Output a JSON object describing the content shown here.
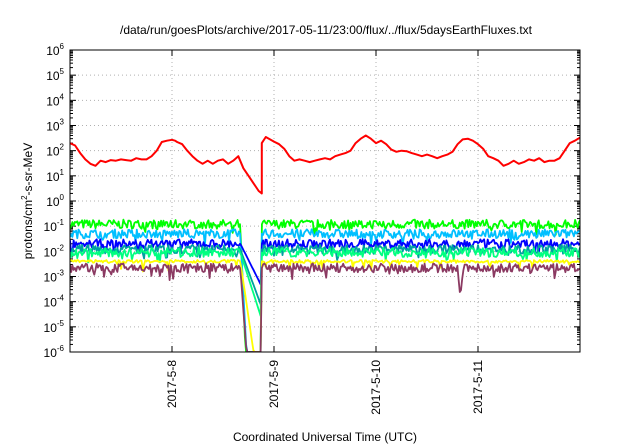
{
  "chart_data": {
    "type": "line",
    "title": "/data/run/goesPlots/archive/2017-05-11/23:00/flux/../flux/5daysEarthFluxes.txt",
    "xlabel": "Coordinated Universal Time (UTC)",
    "ylabel_parts": [
      "protons/cm",
      "2",
      "-s-sr-MeV"
    ],
    "y_scale": "log",
    "ylim": [
      1e-06,
      1000000.0
    ],
    "xlim": [
      0,
      5
    ],
    "grid": true,
    "legend": "none",
    "y_ticks": [
      {
        "value": 1e-06,
        "base": "10",
        "exp": "-6"
      },
      {
        "value": 1e-05,
        "base": "10",
        "exp": "-5"
      },
      {
        "value": 0.0001,
        "base": "10",
        "exp": "-4"
      },
      {
        "value": 0.001,
        "base": "10",
        "exp": "-3"
      },
      {
        "value": 0.01,
        "base": "10",
        "exp": "-2"
      },
      {
        "value": 0.1,
        "base": "10",
        "exp": "-1"
      },
      {
        "value": 1,
        "base": "10",
        "exp": "0"
      },
      {
        "value": 10,
        "base": "10",
        "exp": "1"
      },
      {
        "value": 100,
        "base": "10",
        "exp": "2"
      },
      {
        "value": 1000,
        "base": "10",
        "exp": "3"
      },
      {
        "value": 10000,
        "base": "10",
        "exp": "4"
      },
      {
        "value": 100000,
        "base": "10",
        "exp": "5"
      },
      {
        "value": 1000000,
        "base": "10",
        "exp": "6"
      }
    ],
    "x_ticks": [
      {
        "value": 1,
        "label": "2017-5-8"
      },
      {
        "value": 2,
        "label": "2017-5-9"
      },
      {
        "value": 3,
        "label": "2017-5-10"
      },
      {
        "value": 4,
        "label": "2017-5-11"
      }
    ],
    "series": [
      {
        "color": "#ff0000",
        "values": [
          [
            0.0,
            200
          ],
          [
            0.05,
            160
          ],
          [
            0.1,
            80
          ],
          [
            0.15,
            45
          ],
          [
            0.2,
            30
          ],
          [
            0.25,
            25
          ],
          [
            0.3,
            40
          ],
          [
            0.35,
            35
          ],
          [
            0.4,
            42
          ],
          [
            0.45,
            40
          ],
          [
            0.5,
            45
          ],
          [
            0.55,
            42
          ],
          [
            0.6,
            40
          ],
          [
            0.65,
            50
          ],
          [
            0.7,
            45
          ],
          [
            0.75,
            45
          ],
          [
            0.8,
            60
          ],
          [
            0.85,
            100
          ],
          [
            0.9,
            220
          ],
          [
            0.95,
            250
          ],
          [
            1.0,
            270
          ],
          [
            1.03,
            250
          ],
          [
            1.05,
            220
          ],
          [
            1.1,
            180
          ],
          [
            1.15,
            100
          ],
          [
            1.2,
            60
          ],
          [
            1.25,
            40
          ],
          [
            1.3,
            30
          ],
          [
            1.35,
            40
          ],
          [
            1.4,
            30
          ],
          [
            1.45,
            40
          ],
          [
            1.5,
            45
          ],
          [
            1.55,
            30
          ],
          [
            1.6,
            40
          ],
          [
            1.65,
            60
          ],
          [
            1.7,
            20
          ],
          [
            1.75,
            10
          ],
          [
            1.8,
            5
          ],
          [
            1.85,
            2.5
          ],
          [
            1.88,
            2.0
          ],
          [
            1.88,
            200
          ],
          [
            1.92,
            350
          ],
          [
            1.95,
            300
          ],
          [
            2.0,
            230
          ],
          [
            2.05,
            180
          ],
          [
            2.1,
            120
          ],
          [
            2.15,
            60
          ],
          [
            2.2,
            40
          ],
          [
            2.25,
            45
          ],
          [
            2.3,
            40
          ],
          [
            2.35,
            35
          ],
          [
            2.4,
            40
          ],
          [
            2.45,
            45
          ],
          [
            2.5,
            50
          ],
          [
            2.55,
            45
          ],
          [
            2.6,
            60
          ],
          [
            2.65,
            70
          ],
          [
            2.7,
            80
          ],
          [
            2.75,
            100
          ],
          [
            2.8,
            200
          ],
          [
            2.85,
            300
          ],
          [
            2.9,
            400
          ],
          [
            2.95,
            300
          ],
          [
            3.0,
            200
          ],
          [
            3.05,
            250
          ],
          [
            3.1,
            180
          ],
          [
            3.15,
            110
          ],
          [
            3.2,
            90
          ],
          [
            3.25,
            100
          ],
          [
            3.3,
            95
          ],
          [
            3.35,
            80
          ],
          [
            3.4,
            70
          ],
          [
            3.45,
            60
          ],
          [
            3.5,
            70
          ],
          [
            3.55,
            60
          ],
          [
            3.6,
            50
          ],
          [
            3.65,
            60
          ],
          [
            3.7,
            70
          ],
          [
            3.75,
            90
          ],
          [
            3.8,
            180
          ],
          [
            3.85,
            280
          ],
          [
            3.9,
            300
          ],
          [
            3.95,
            250
          ],
          [
            4.0,
            180
          ],
          [
            4.05,
            120
          ],
          [
            4.1,
            60
          ],
          [
            4.15,
            50
          ],
          [
            4.2,
            40
          ],
          [
            4.25,
            25
          ],
          [
            4.3,
            30
          ],
          [
            4.35,
            40
          ],
          [
            4.4,
            30
          ],
          [
            4.45,
            35
          ],
          [
            4.5,
            45
          ],
          [
            4.55,
            40
          ],
          [
            4.6,
            50
          ],
          [
            4.65,
            35
          ],
          [
            4.7,
            40
          ],
          [
            4.75,
            40
          ],
          [
            4.8,
            50
          ],
          [
            4.85,
            100
          ],
          [
            4.9,
            200
          ],
          [
            4.95,
            250
          ],
          [
            5.0,
            330
          ]
        ]
      },
      {
        "color": "#00ff00",
        "values": [
          [
            0.0,
            0.12
          ],
          [
            1.67,
            0.12
          ],
          [
            1.72,
            1e-06
          ],
          [
            1.88,
            1e-06
          ],
          [
            1.88,
            0.12
          ],
          [
            5.0,
            0.12
          ]
        ]
      },
      {
        "color": "#00bfff",
        "values": [
          [
            0.0,
            0.05
          ],
          [
            1.67,
            0.05
          ],
          [
            1.73,
            1e-06
          ],
          [
            1.88,
            1e-06
          ],
          [
            1.88,
            0.05
          ],
          [
            5.0,
            0.05
          ]
        ]
      },
      {
        "color": "#0000ff",
        "values": [
          [
            0.0,
            0.02
          ],
          [
            1.67,
            0.02
          ],
          [
            1.88,
            0.0004
          ],
          [
            1.88,
            0.02
          ],
          [
            5.0,
            0.02
          ]
        ]
      },
      {
        "color": "#00a0a0",
        "values": [
          [
            0.0,
            0.012
          ],
          [
            1.67,
            0.012
          ],
          [
            1.88,
            6e-05
          ],
          [
            1.88,
            0.012
          ],
          [
            5.0,
            0.012
          ]
        ]
      },
      {
        "color": "#00ff80",
        "values": [
          [
            0.0,
            0.009
          ],
          [
            1.67,
            0.009
          ],
          [
            1.88,
            2e-05
          ],
          [
            1.88,
            0.009
          ],
          [
            5.0,
            0.009
          ]
        ]
      },
      {
        "color": "#ffff00",
        "values": [
          [
            0.0,
            0.004
          ],
          [
            1.67,
            0.004
          ],
          [
            1.8,
            1e-06
          ],
          [
            1.88,
            1e-06
          ],
          [
            1.88,
            0.004
          ],
          [
            5.0,
            0.004
          ]
        ]
      },
      {
        "color": "#8b3a62",
        "values": [
          [
            0.0,
            0.0022
          ],
          [
            1.67,
            0.0022
          ],
          [
            1.73,
            1e-06
          ],
          [
            1.88,
            1e-06
          ],
          [
            1.88,
            0.0022
          ],
          [
            3.8,
            0.0022
          ],
          [
            3.83,
            0.0003
          ],
          [
            3.86,
            0.0022
          ],
          [
            5.0,
            0.0022
          ]
        ]
      }
    ]
  }
}
